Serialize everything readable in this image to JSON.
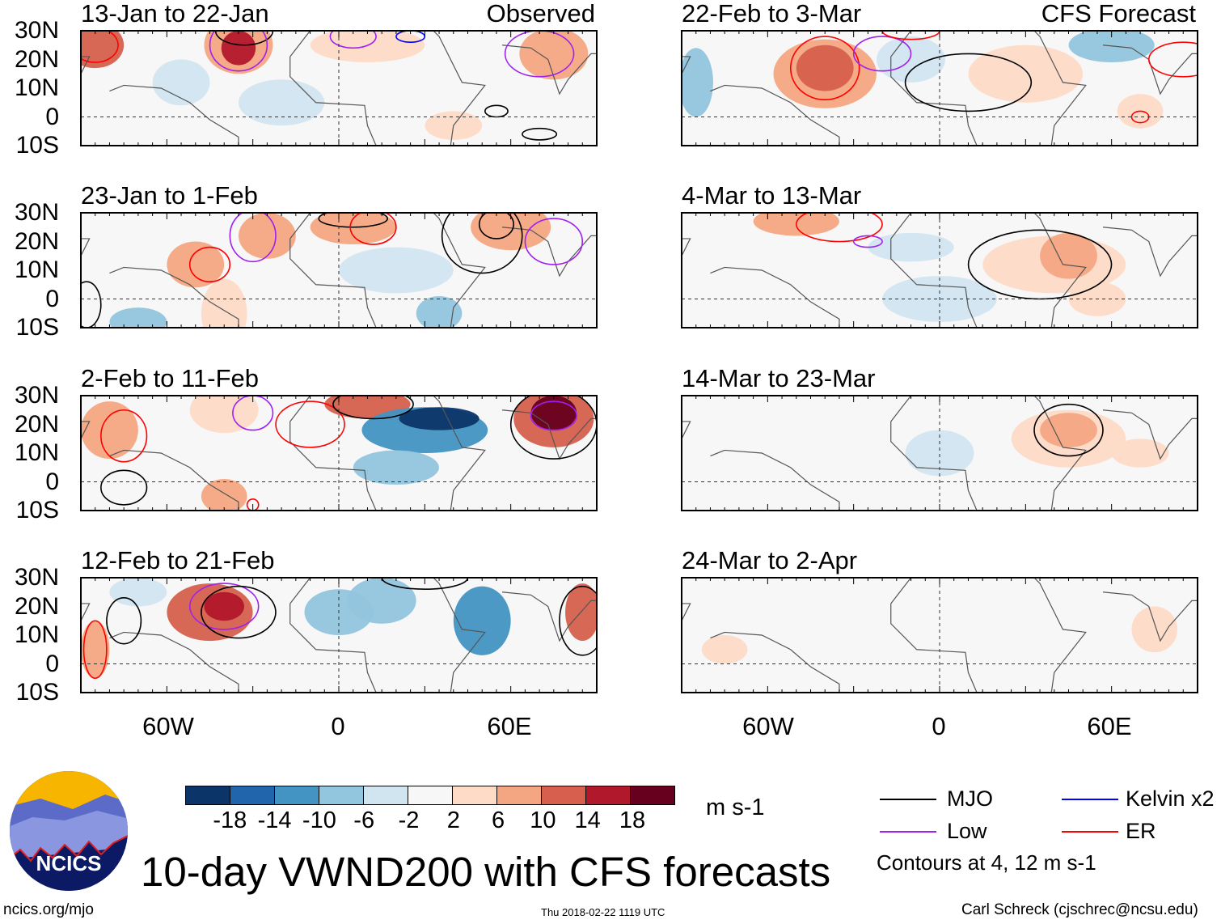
{
  "panels_left": [
    {
      "title": "13-Jan to 22-Jan",
      "tag": "Observed"
    },
    {
      "title": "23-Jan to 1-Feb"
    },
    {
      "title": "2-Feb to 11-Feb"
    },
    {
      "title": "12-Feb to 21-Feb"
    }
  ],
  "panels_right": [
    {
      "title": "22-Feb to 3-Mar",
      "tag": "CFS Forecast"
    },
    {
      "title": "4-Mar to 13-Mar"
    },
    {
      "title": "14-Mar to 23-Mar"
    },
    {
      "title": "24-Mar to 2-Apr"
    }
  ],
  "lat_labels": [
    "30N",
    "20N",
    "10N",
    "0",
    "10S"
  ],
  "lon_labels": [
    "60W",
    "0",
    "60E"
  ],
  "colorbar": {
    "colors": [
      "#0b3569",
      "#2166ac",
      "#4393c3",
      "#92c5de",
      "#d1e5f0",
      "#f7f7f7",
      "#fddbc7",
      "#f4a582",
      "#d6604d",
      "#b2182b",
      "#67001f"
    ],
    "labels": [
      "-18",
      "-14",
      "-10",
      "-6",
      "-2",
      "2",
      "6",
      "10",
      "14",
      "18"
    ],
    "units": "m s-1"
  },
  "legend": {
    "items": [
      {
        "label": "MJO",
        "color": "#000000"
      },
      {
        "label": "Kelvin x2",
        "color": "#0000ff"
      },
      {
        "label": "Low",
        "color": "#a020f0"
      },
      {
        "label": "ER",
        "color": "#ff0000"
      }
    ],
    "note": "Contours at 4, 12 m s-1"
  },
  "logo": {
    "text": "NCICS"
  },
  "title": "10-day VWND200 with CFS forecasts",
  "footer": {
    "url": "ncics.org/mjo",
    "timestamp": "Thu 2018-02-22 1119 UTC",
    "credit": "Carl Schreck (cjschrec@ncsu.edu)"
  }
}
